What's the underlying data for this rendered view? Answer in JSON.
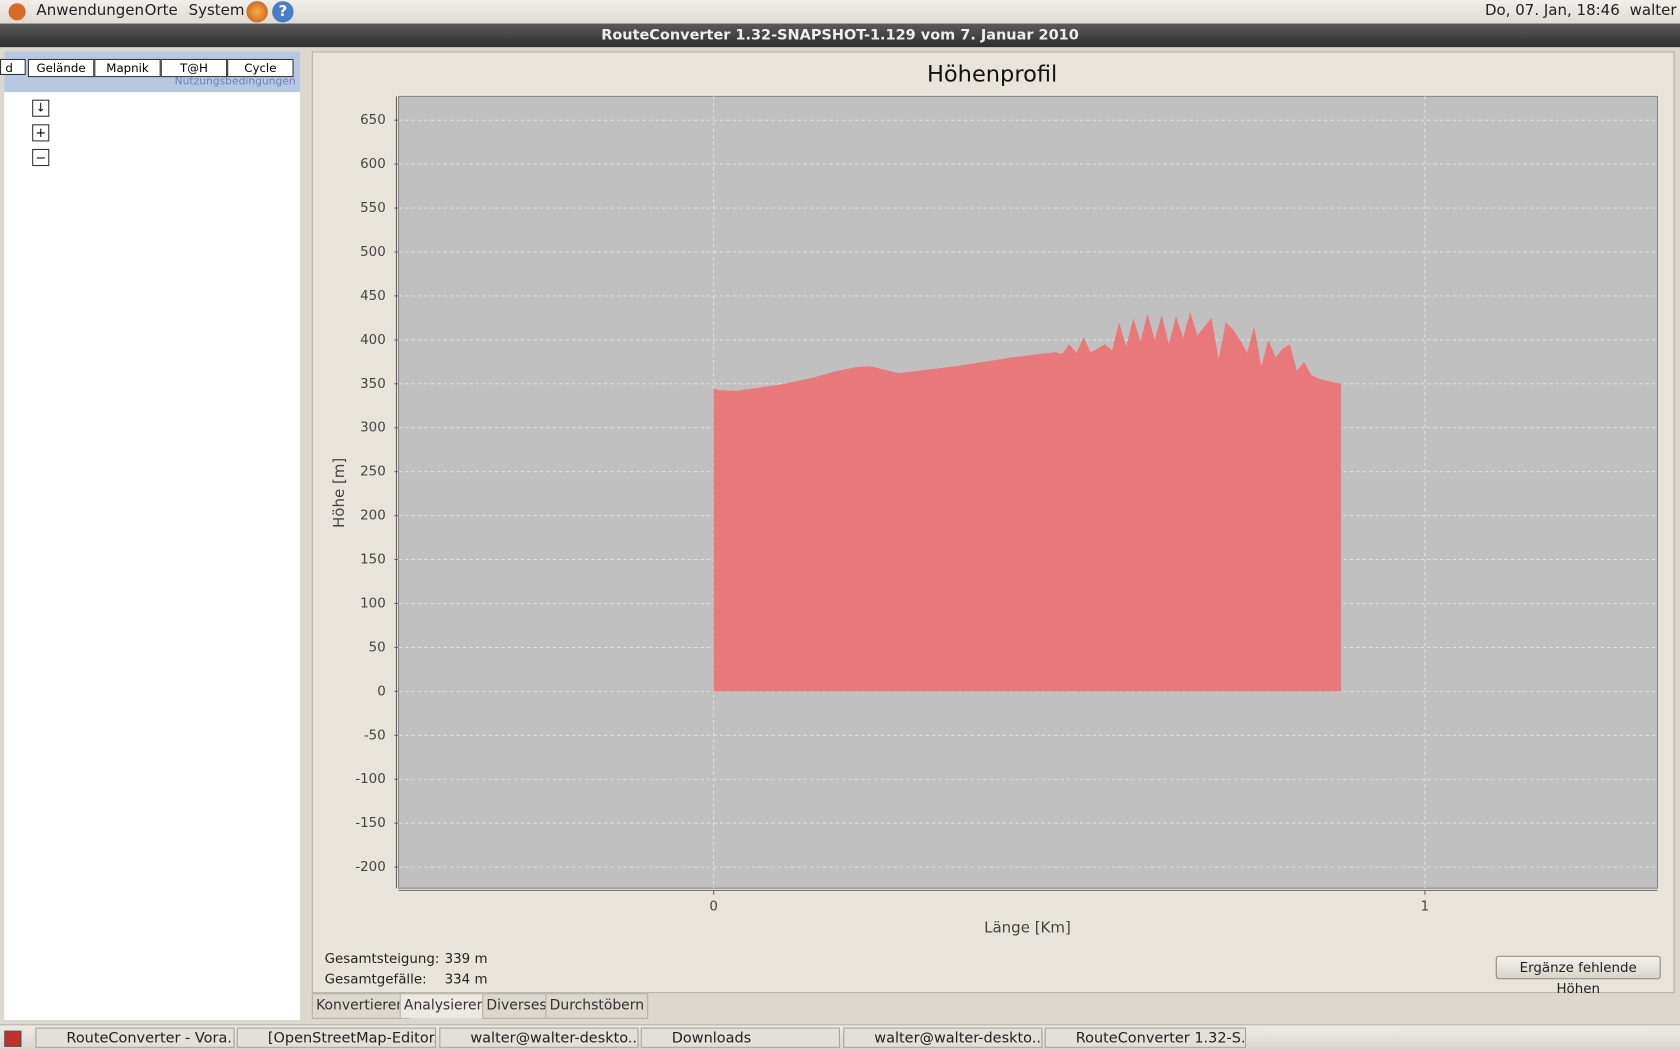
{
  "panel": {
    "menus": [
      "Anwendungen",
      "Orte",
      "System"
    ],
    "clock": "Do, 07. Jan, 18:46",
    "user": "walter"
  },
  "window": {
    "title": "RouteConverter 1.32-SNAPSHOT-1.129 vom 7. Januar 2010"
  },
  "map": {
    "tabs": [
      "d",
      "Gelände",
      "Mapnik",
      "T@H",
      "Cycle"
    ],
    "terms": "Nutzungsbedingungen"
  },
  "chart_data": {
    "type": "area",
    "title": "Höhenprofil",
    "x_label": "Länge [Km]",
    "y_label": "Höhe [m]",
    "x": [
      0,
      0.005,
      0.03,
      0.06,
      0.1,
      0.14,
      0.17,
      0.2,
      0.22,
      0.23,
      0.26,
      0.3,
      0.34,
      0.38,
      0.42,
      0.46,
      0.48,
      0.49,
      0.5,
      0.51,
      0.52,
      0.53,
      0.54,
      0.55,
      0.56,
      0.57,
      0.58,
      0.59,
      0.6,
      0.61,
      0.62,
      0.63,
      0.64,
      0.65,
      0.66,
      0.67,
      0.68,
      0.69,
      0.7,
      0.71,
      0.72,
      0.73,
      0.74,
      0.75,
      0.76,
      0.77,
      0.78,
      0.79,
      0.8,
      0.81,
      0.82,
      0.83,
      0.84,
      0.85,
      0.87,
      0.882
    ],
    "values": [
      345,
      343,
      342,
      345,
      350,
      357,
      364,
      369,
      370,
      368,
      362,
      366,
      370,
      375,
      380,
      384,
      386,
      384,
      395,
      385,
      403,
      386,
      390,
      395,
      388,
      420,
      392,
      425,
      398,
      430,
      400,
      428,
      395,
      427,
      402,
      432,
      405,
      415,
      425,
      378,
      420,
      412,
      400,
      385,
      415,
      370,
      400,
      380,
      390,
      395,
      365,
      375,
      360,
      356,
      352,
      350
    ],
    "color": "#e8787a",
    "xlim": [
      -0.443,
      1.327
    ],
    "ylim": [
      -224,
      677
    ],
    "xticks": [
      0,
      1
    ],
    "yticks": [
      -200,
      -150,
      -100,
      -50,
      0,
      50,
      100,
      150,
      200,
      250,
      300,
      350,
      400,
      450,
      500,
      550,
      600,
      650
    ],
    "grid": true
  },
  "stats": {
    "rows": [
      [
        "Gesamtsteigung:",
        "339 m"
      ],
      [
        "Gesamtgefälle:",
        "334 m"
      ]
    ]
  },
  "button": "Ergänze fehlende Höhen",
  "tabs": [
    "Konvertieren",
    "Analysieren",
    "Diverses",
    "Durchstöbern"
  ],
  "taskbar": [
    "RouteConverter - Vora...",
    "[OpenStreetMap-Editor...",
    "walter@walter-deskto...",
    "Downloads",
    "walter@walter-deskto...",
    "RouteConverter 1.32-S..."
  ]
}
